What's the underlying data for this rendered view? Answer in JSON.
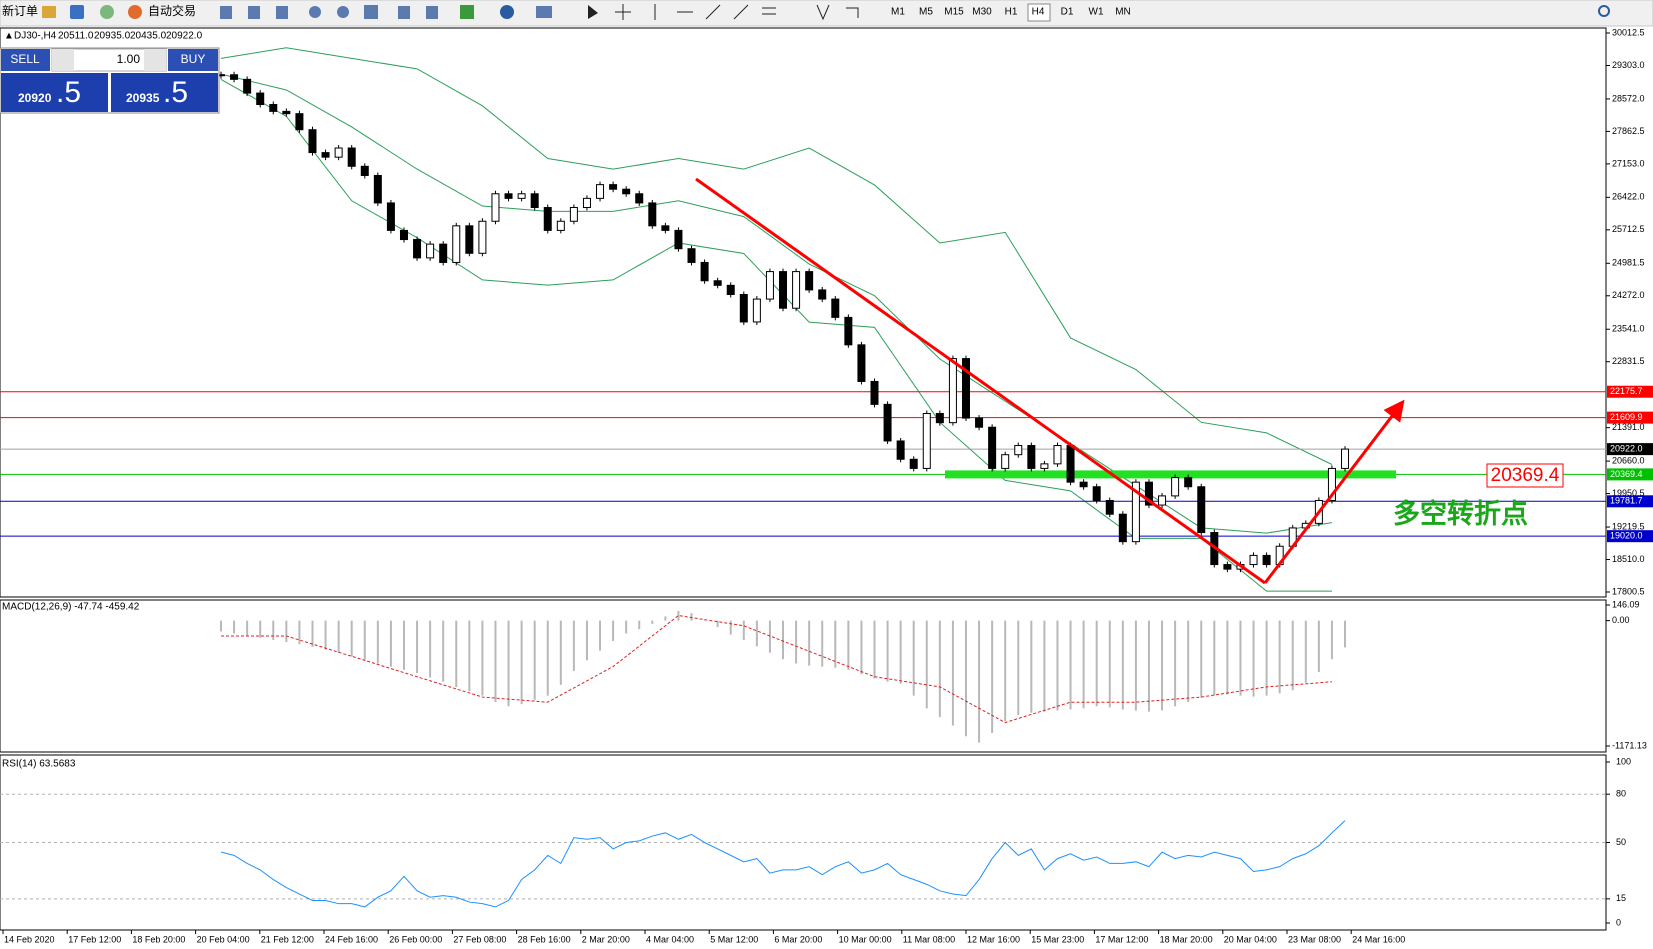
{
  "toolbar": {
    "new_order": "新订单",
    "auto_trading": "自动交易",
    "timeframes": [
      "M1",
      "M5",
      "M15",
      "M30",
      "H1",
      "H4",
      "D1",
      "W1",
      "MN"
    ]
  },
  "symbol_header": {
    "symbol": "DJ30-,H4",
    "open": "20511.0",
    "high": "20935.0",
    "low": "20435.0",
    "close": "20922.0"
  },
  "trade_panel": {
    "sell": "SELL",
    "buy": "BUY",
    "volume": "1.00",
    "bid_big": "20920",
    "bid_small": ".5",
    "ask_big": "20935",
    "ask_small": ".5"
  },
  "price_axis": {
    "ticks": [
      {
        "value": 30012.5,
        "label": "30012.5"
      },
      {
        "value": 29303,
        "label": "29303.0"
      },
      {
        "value": 28572,
        "label": "28572.0"
      },
      {
        "value": 27862.5,
        "label": "27862.5"
      },
      {
        "value": 27153,
        "label": "27153.0"
      },
      {
        "value": 26422,
        "label": "26422.0"
      },
      {
        "value": 25712.5,
        "label": "25712.5"
      },
      {
        "value": 24981.5,
        "label": "24981.5"
      },
      {
        "value": 24272,
        "label": "24272.0"
      },
      {
        "value": 23541,
        "label": "23541.0"
      },
      {
        "value": 22831.5,
        "label": "22831.5"
      },
      {
        "value": 21391,
        "label": "21391.0"
      },
      {
        "value": 20660,
        "label": "20660.0"
      },
      {
        "value": 19950.5,
        "label": "19950.5"
      },
      {
        "value": 19219.5,
        "label": "19219.5"
      },
      {
        "value": 18510,
        "label": "18510.0"
      },
      {
        "value": 17800.5,
        "label": "17800.5"
      }
    ]
  },
  "levels": [
    {
      "value": 22175.7,
      "label": "22175.7",
      "color": "#ff0000"
    },
    {
      "value": 21609.9,
      "label": "21609.9",
      "color": "#ff0000"
    },
    {
      "value": 20922,
      "label": "20922.0",
      "color": "#000000"
    },
    {
      "value": 20369.4,
      "label": "20369.4",
      "color": "#00c000"
    },
    {
      "value": 19781.7,
      "label": "19781.7",
      "color": "#0000cc"
    },
    {
      "value": 19020,
      "label": "19020.0",
      "color": "#0000cc"
    }
  ],
  "candles": {
    "closes": [
      29100,
      29000,
      28700,
      28450,
      28300,
      28250,
      27900,
      27400,
      27300,
      27500,
      27100,
      26900,
      26300,
      25700,
      25500,
      25100,
      25400,
      25000,
      25800,
      25200,
      25900,
      26500,
      26400,
      26500,
      26200,
      25700,
      25900,
      26200,
      26400,
      26700,
      26600,
      26500,
      26300,
      25800,
      25700,
      25300,
      25000,
      24600,
      24500,
      24300,
      23700,
      24200,
      24800,
      24000,
      24800,
      24400,
      24200,
      23800,
      23200,
      22400,
      21900,
      21100,
      20700,
      20500,
      21700,
      21500,
      22900,
      21600,
      21400,
      20500,
      20800,
      21000,
      20500,
      20600,
      21000,
      20200,
      20100,
      19800,
      19500,
      18900,
      20200,
      19700,
      19900,
      20300,
      20100,
      19100,
      18400,
      18300,
      18400,
      18600,
      18400,
      18800,
      19200,
      19300,
      19800,
      20500,
      20922
    ]
  },
  "bollinger": {
    "x": [
      0,
      5,
      10,
      15,
      20,
      25,
      30,
      35,
      40,
      45,
      50,
      55,
      60,
      65,
      70,
      75,
      80,
      85
    ],
    "upper": [
      29459,
      29690,
      29459,
      29229,
      28422,
      27270,
      27039,
      27270,
      27039,
      27500,
      26693,
      25425,
      25656,
      23351,
      22660,
      21507,
      21277,
      20586
    ],
    "middle": [
      29114,
      28768,
      27961,
      27039,
      26232,
      26117,
      26117,
      26347,
      26002,
      24965,
      24273,
      22891,
      21968,
      21046,
      20124,
      19202,
      19087,
      19317
    ],
    "lower": [
      28998,
      28192,
      26347,
      25541,
      24619,
      24504,
      24619,
      25426,
      25195,
      23697,
      23582,
      21507,
      20239,
      20009,
      18972,
      18972,
      17819,
      17819
    ]
  },
  "macd": {
    "label": "MACD(12,26,9) -47.74 -459.42",
    "scale": [
      {
        "value": 146.09,
        "label": "146.09"
      },
      {
        "value": 0,
        "label": "0.00"
      },
      {
        "value": -1171.13,
        "label": "-1171.13"
      }
    ],
    "histogram": [
      -100,
      -120,
      -140,
      -160,
      -180,
      -200,
      -220,
      -245,
      -270,
      -300,
      -335,
      -365,
      -400,
      -430,
      -460,
      -490,
      -530,
      -570,
      -620,
      -660,
      -700,
      -760,
      -800,
      -780,
      -740,
      -700,
      -600,
      -470,
      -370,
      -280,
      -190,
      -120,
      -80,
      -30,
      40,
      90,
      70,
      10,
      -60,
      -130,
      -180,
      -240,
      -300,
      -360,
      -400,
      -420,
      -430,
      -440,
      -460,
      -500,
      -540,
      -570,
      -590,
      -700,
      -820,
      -900,
      -980,
      -1080,
      -1140,
      -1050,
      -940,
      -880,
      -860,
      -850,
      -840,
      -830,
      -820,
      -800,
      -810,
      -830,
      -840,
      -850,
      -840,
      -800,
      -760,
      -720,
      -700,
      -690,
      -700,
      -710,
      -700,
      -680,
      -650,
      -580,
      -480,
      -360,
      -250
    ],
    "signal_x": [
      0,
      5,
      10,
      15,
      20,
      25,
      30,
      35,
      40,
      45,
      50,
      55,
      60,
      65,
      70,
      75,
      80,
      85
    ],
    "signal": [
      -143,
      -143,
      -333,
      -524,
      -714,
      -762,
      -429,
      48,
      -48,
      -286,
      -524,
      -619,
      -952,
      -762,
      -762,
      -714,
      -619,
      -571
    ]
  },
  "rsi": {
    "label": "RSI(14) 63.5683",
    "scale": [
      100,
      80,
      50,
      15,
      0
    ],
    "values": [
      44,
      42,
      37,
      33,
      27,
      22,
      18,
      14,
      14,
      12,
      12,
      10,
      16,
      20,
      29,
      20,
      16,
      17,
      16,
      13,
      12,
      10,
      14,
      27,
      33,
      42,
      37,
      53,
      52,
      53,
      46,
      50,
      51,
      54,
      56,
      52,
      55,
      50,
      46,
      42,
      38,
      40,
      31,
      33,
      33,
      35,
      30,
      35,
      38,
      31,
      33,
      37,
      30,
      27,
      24,
      20,
      18,
      17,
      27,
      40,
      50,
      42,
      46,
      33,
      40,
      43,
      39,
      41,
      37,
      37,
      38,
      35,
      44,
      40,
      42,
      41,
      44,
      42,
      40,
      32,
      33,
      35,
      40,
      43,
      48,
      56,
      63.57
    ]
  },
  "time_axis": [
    "14 Feb 2020",
    "17 Feb 12:00",
    "18 Feb 20:00",
    "20 Feb 04:00",
    "21 Feb 12:00",
    "24 Feb 16:00",
    "26 Feb 00:00",
    "27 Feb 08:00",
    "28 Feb 16:00",
    "2 Mar 20:00",
    "4 Mar 04:00",
    "5 Mar 12:00",
    "6 Mar 20:00",
    "10 Mar 00:00",
    "11 Mar 08:00",
    "12 Mar 16:00",
    "15 Mar 23:00",
    "17 Mar 12:00",
    "18 Mar 20:00",
    "20 Mar 04:00",
    "23 Mar 08:00",
    "24 Mar 16:00"
  ],
  "annotations": {
    "level_box": "20369.4",
    "note": "多空转折点"
  }
}
